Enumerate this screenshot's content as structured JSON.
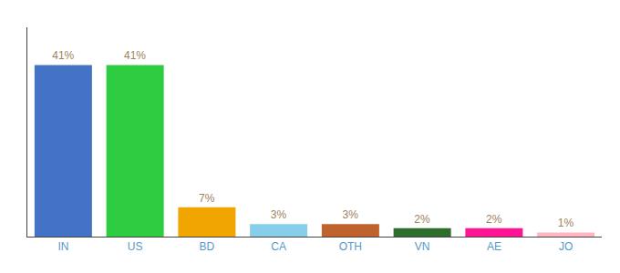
{
  "chart_data": {
    "type": "bar",
    "categories": [
      "IN",
      "US",
      "BD",
      "CA",
      "OTH",
      "VN",
      "AE",
      "JO"
    ],
    "values": [
      41,
      41,
      7,
      3,
      3,
      2,
      2,
      1
    ],
    "value_labels": [
      "41%",
      "41%",
      "7%",
      "3%",
      "3%",
      "2%",
      "2%",
      "1%"
    ],
    "colors": [
      "#4472c4",
      "#2ecc40",
      "#f0a500",
      "#87ceeb",
      "#c0622d",
      "#2d6e2d",
      "#ff1493",
      "#ffb6c1"
    ],
    "ylim": [
      0,
      50
    ],
    "data_labels": true,
    "tick_labels": "x",
    "grid": false
  }
}
